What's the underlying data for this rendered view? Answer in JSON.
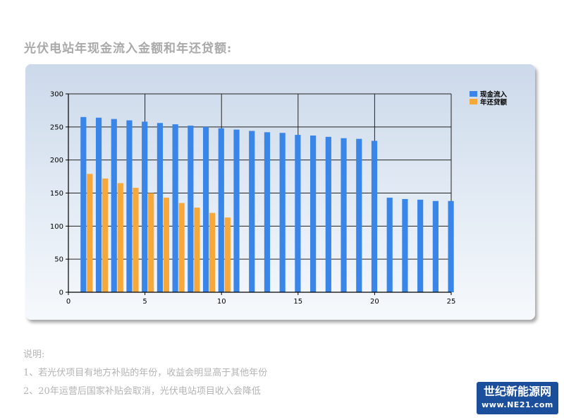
{
  "page": {
    "title": "光伏电站年现金流入金额和年还贷额:",
    "notes": [
      "说明:",
      "1、若光伏项目有地方补贴的年份，收益会明显高于其他年份",
      "2、20年运营后国家补贴会取消，光伏电站项目收入会降低"
    ]
  },
  "watermark": {
    "line1": "世纪新能源网",
    "line2": "www.NE21.com"
  },
  "chart_data": {
    "type": "bar",
    "x": [
      1,
      2,
      3,
      4,
      5,
      6,
      7,
      8,
      9,
      10,
      11,
      12,
      13,
      14,
      15,
      16,
      17,
      18,
      19,
      20,
      21,
      22,
      23,
      24,
      25
    ],
    "series": [
      {
        "name": "现金流入",
        "color": "#3a86e8",
        "values": [
          265,
          264,
          262,
          260,
          258,
          256,
          254,
          252,
          250,
          248,
          246,
          244,
          242,
          241,
          238,
          237,
          235,
          233,
          232,
          229,
          143,
          141,
          140,
          138,
          138
        ]
      },
      {
        "name": "年还贷额",
        "color": "#f6a93a",
        "values": [
          179,
          172,
          165,
          158,
          150,
          143,
          135,
          128,
          120,
          113,
          null,
          null,
          null,
          null,
          null,
          null,
          null,
          null,
          null,
          null,
          null,
          null,
          null,
          null,
          null
        ]
      }
    ],
    "xlim": [
      0,
      25
    ],
    "ylim": [
      0,
      300
    ],
    "xticks": [
      0,
      5,
      10,
      15,
      20,
      25
    ],
    "yticks": [
      0,
      50,
      100,
      150,
      200,
      250,
      300
    ],
    "grid": true,
    "legend_position": "top-right"
  }
}
